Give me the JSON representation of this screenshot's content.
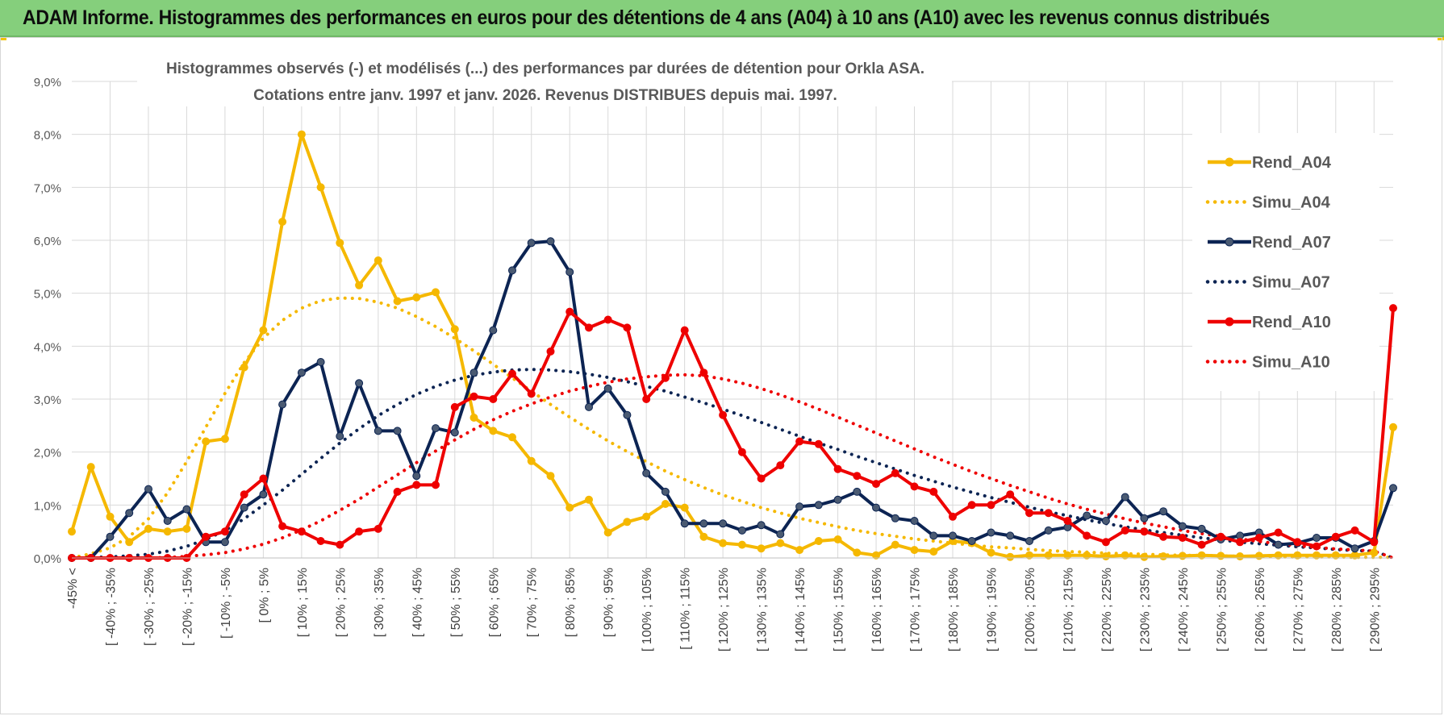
{
  "banner": {
    "title": "ADAM Informe. Histogrammes des performances en euros pour des détentions de 4 ans (A04) à 10 ans (A10) avec les revenus connus distribués"
  },
  "colors": {
    "banner_bg": "#85cf7c",
    "A04": "#f5b800",
    "A07": "#0c2453",
    "A10": "#ee0000",
    "grid": "#d9d9d9"
  },
  "chart_data": {
    "type": "line",
    "title_line1": "Histogrammes observés (-) et modélisés (...) des performances par durées de détention pour Orkla ASA.",
    "title_line2": "Cotations entre janv. 1997 et janv. 2026. Revenus DISTRIBUES depuis mai. 1997.",
    "ylim": [
      0,
      9
    ],
    "y_unit": "%",
    "y_ticks": [
      "0,0%",
      "1,0%",
      "2,0%",
      "3,0%",
      "4,0%",
      "5,0%",
      "6,0%",
      "7,0%",
      "8,0%",
      "9,0%"
    ],
    "grid": true,
    "legend_position": "right",
    "x_tick_labels": [
      "-45% <",
      "[ -40% ; -35%",
      "[ -30% ; -25%",
      "[ -20% ; -15%",
      "[ -10% ; -5%",
      "[ 0% ; 5%",
      "[ 10% ; 15%",
      "[ 20% ; 25%",
      "[ 30% ; 35%",
      "[ 40% ; 45%",
      "[ 50% ; 55%",
      "[ 60% ; 65%",
      "[ 70% ; 75%",
      "[ 80% ; 85%",
      "[ 90% ; 95%",
      "[ 100% ; 105%",
      "[ 110% ; 115%",
      "[ 120% ; 125%",
      "[ 130% ; 135%",
      "[ 140% ; 145%",
      "[ 150% ; 155%",
      "[ 160% ; 165%",
      "[ 170% ; 175%",
      "[ 180% ; 185%",
      "[ 190% ; 195%",
      "[ 200% ; 205%",
      "[ 210% ; 215%",
      "[ 220% ; 225%",
      "[ 230% ; 235%",
      "[ 240% ; 245%",
      "[ 250% ; 255%",
      "[ 260% ; 265%",
      "[ 270% ; 275%",
      "[ 280% ; 285%",
      "[ 290% ; 295%"
    ],
    "series": [
      {
        "name": "Rend_A04",
        "style": "solid",
        "color": "#f5b800",
        "values": [
          0.5,
          1.72,
          0.78,
          0.3,
          0.55,
          0.5,
          0.55,
          2.2,
          2.25,
          3.6,
          4.3,
          6.35,
          8.0,
          7.0,
          5.95,
          5.15,
          5.62,
          4.85,
          4.92,
          5.02,
          4.32,
          2.65,
          2.4,
          2.28,
          1.83,
          1.55,
          0.95,
          1.1,
          0.48,
          0.68,
          0.78,
          1.02,
          0.95,
          0.4,
          0.28,
          0.25,
          0.18,
          0.28,
          0.15,
          0.32,
          0.35,
          0.1,
          0.05,
          0.25,
          0.15,
          0.12,
          0.32,
          0.28,
          0.1,
          0.02,
          0.05,
          0.05,
          0.05,
          0.05,
          0.03,
          0.05,
          0.02,
          0.03,
          0.04,
          0.05,
          0.04,
          0.03,
          0.04,
          0.05,
          0.05,
          0.05,
          0.05,
          0.05,
          0.1,
          2.47
        ]
      },
      {
        "name": "Simu_A04",
        "style": "dotted",
        "color": "#f5b800",
        "values": [
          0.0,
          0.08,
          0.19,
          0.4,
          0.74,
          1.23,
          1.82,
          2.47,
          3.11,
          3.69,
          4.15,
          4.49,
          4.72,
          4.86,
          4.91,
          4.9,
          4.83,
          4.72,
          4.56,
          4.37,
          4.15,
          3.91,
          3.66,
          3.4,
          3.15,
          2.9,
          2.66,
          2.43,
          2.21,
          2.01,
          1.82,
          1.64,
          1.48,
          1.33,
          1.19,
          1.07,
          0.95,
          0.85,
          0.75,
          0.67,
          0.59,
          0.52,
          0.46,
          0.41,
          0.36,
          0.32,
          0.28,
          0.24,
          0.21,
          0.19,
          0.16,
          0.14,
          0.12,
          0.11,
          0.09,
          0.08,
          0.07,
          0.06,
          0.05,
          0.05,
          0.04,
          0.03,
          0.03,
          0.02,
          0.02,
          0.02,
          0.02,
          0.01,
          0.01,
          0.01
        ]
      },
      {
        "name": "Rend_A07",
        "style": "solid",
        "color": "#0c2453",
        "values": [
          0.0,
          0.0,
          0.4,
          0.85,
          1.3,
          0.7,
          0.92,
          0.3,
          0.3,
          0.95,
          1.2,
          2.9,
          3.5,
          3.7,
          2.3,
          3.3,
          2.4,
          2.4,
          1.55,
          2.45,
          2.37,
          3.5,
          4.3,
          5.43,
          5.95,
          5.98,
          5.4,
          2.85,
          3.2,
          2.7,
          1.6,
          1.25,
          0.65,
          0.65,
          0.65,
          0.52,
          0.62,
          0.45,
          0.97,
          1.0,
          1.1,
          1.25,
          0.95,
          0.75,
          0.7,
          0.42,
          0.42,
          0.32,
          0.48,
          0.42,
          0.32,
          0.52,
          0.58,
          0.8,
          0.7,
          1.15,
          0.75,
          0.88,
          0.6,
          0.55,
          0.35,
          0.42,
          0.48,
          0.25,
          0.28,
          0.38,
          0.38,
          0.18,
          0.32,
          1.32
        ]
      },
      {
        "name": "Simu_A07",
        "style": "dotted",
        "color": "#0c2453",
        "values": [
          0.0,
          0.01,
          0.02,
          0.04,
          0.07,
          0.13,
          0.22,
          0.35,
          0.52,
          0.74,
          1.0,
          1.28,
          1.58,
          1.88,
          2.17,
          2.44,
          2.69,
          2.9,
          3.09,
          3.24,
          3.36,
          3.45,
          3.51,
          3.55,
          3.56,
          3.55,
          3.52,
          3.47,
          3.41,
          3.33,
          3.24,
          3.15,
          3.04,
          2.93,
          2.81,
          2.69,
          2.56,
          2.43,
          2.3,
          2.17,
          2.05,
          1.92,
          1.8,
          1.68,
          1.56,
          1.45,
          1.34,
          1.24,
          1.14,
          1.05,
          0.96,
          0.87,
          0.8,
          0.72,
          0.65,
          0.59,
          0.53,
          0.48,
          0.43,
          0.38,
          0.34,
          0.3,
          0.27,
          0.24,
          0.21,
          0.19,
          0.16,
          0.14,
          0.13,
          0.0
        ]
      },
      {
        "name": "Rend_A10",
        "style": "solid",
        "color": "#ee0000",
        "values": [
          0.0,
          0.0,
          0.0,
          0.0,
          0.0,
          0.0,
          0.0,
          0.4,
          0.5,
          1.2,
          1.5,
          0.6,
          0.5,
          0.32,
          0.25,
          0.5,
          0.55,
          1.25,
          1.38,
          1.38,
          2.85,
          3.05,
          3.0,
          3.48,
          3.1,
          3.9,
          4.65,
          4.35,
          4.5,
          4.35,
          3.0,
          3.4,
          4.3,
          3.5,
          2.7,
          2.0,
          1.5,
          1.75,
          2.2,
          2.15,
          1.68,
          1.55,
          1.4,
          1.6,
          1.35,
          1.25,
          0.78,
          1.0,
          1.0,
          1.2,
          0.85,
          0.85,
          0.7,
          0.42,
          0.3,
          0.52,
          0.5,
          0.4,
          0.38,
          0.25,
          0.4,
          0.3,
          0.38,
          0.48,
          0.3,
          0.22,
          0.4,
          0.52,
          0.3,
          4.72
        ]
      },
      {
        "name": "Simu_A10",
        "style": "dotted",
        "color": "#ee0000",
        "values": [
          0.0,
          0.0,
          0.0,
          0.0,
          0.0,
          0.01,
          0.03,
          0.06,
          0.1,
          0.17,
          0.26,
          0.38,
          0.53,
          0.7,
          0.9,
          1.11,
          1.34,
          1.57,
          1.8,
          2.02,
          2.23,
          2.43,
          2.61,
          2.77,
          2.91,
          3.04,
          3.15,
          3.24,
          3.32,
          3.38,
          3.42,
          3.45,
          3.46,
          3.44,
          3.38,
          3.3,
          3.2,
          3.08,
          2.95,
          2.81,
          2.66,
          2.51,
          2.36,
          2.21,
          2.06,
          1.91,
          1.77,
          1.63,
          1.5,
          1.37,
          1.25,
          1.13,
          1.02,
          0.92,
          0.83,
          0.74,
          0.66,
          0.59,
          0.52,
          0.46,
          0.41,
          0.36,
          0.31,
          0.27,
          0.23,
          0.2,
          0.17,
          0.15,
          0.13,
          0.0
        ]
      }
    ]
  }
}
